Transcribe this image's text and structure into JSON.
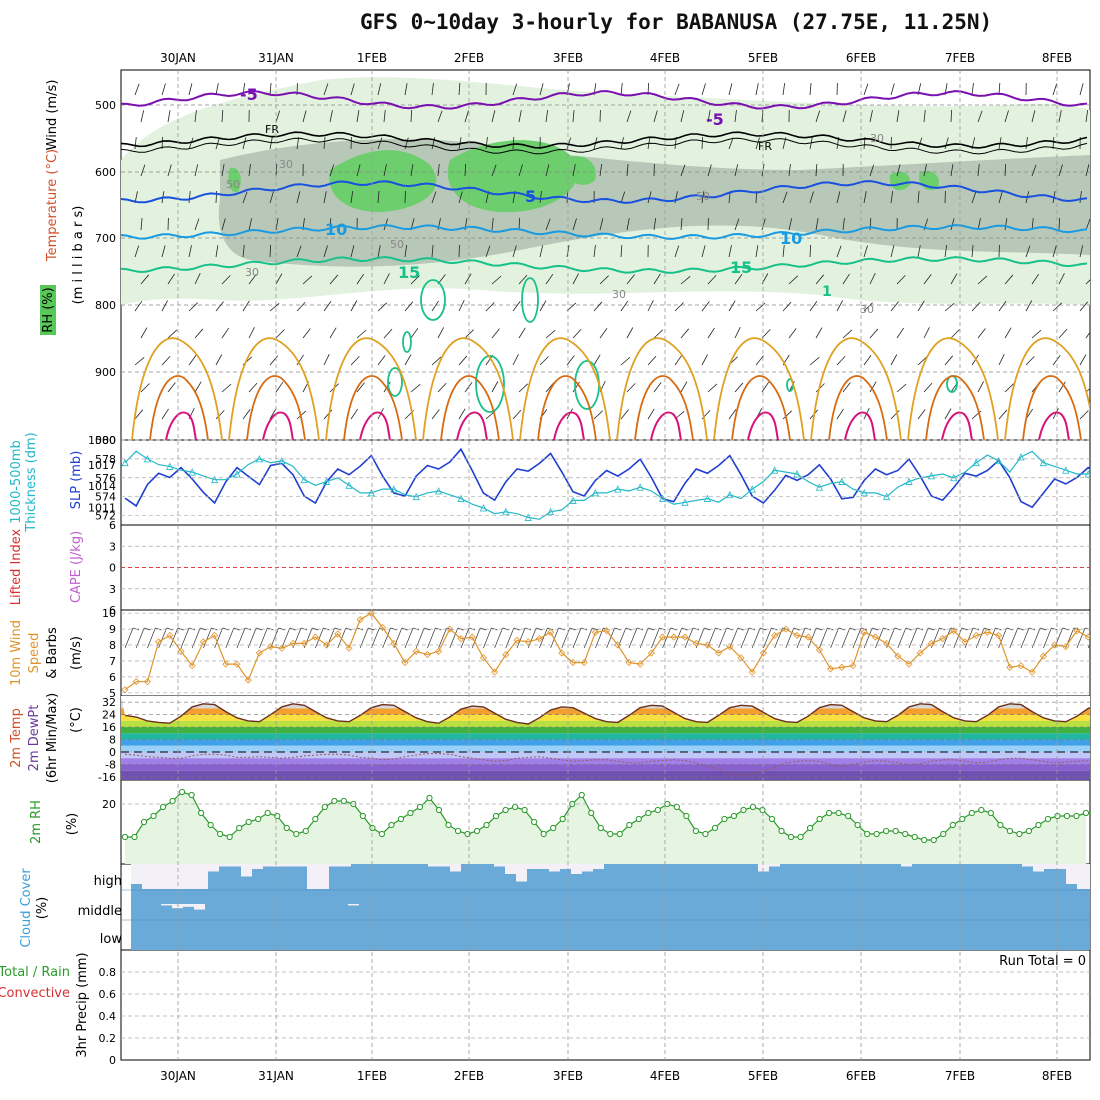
{
  "title": "GFS 0~10day 3-hourly for BABANUSA (27.75E, 11.25N)",
  "dates": [
    "30JAN",
    "31JAN",
    "1FEB",
    "2FEB",
    "3FEB",
    "4FEB",
    "5FEB",
    "6FEB",
    "7FEB",
    "8FEB"
  ],
  "colors": {
    "grid": "#9a9a9a",
    "slp": "#1f3fd0",
    "thickness": "#22b8c8",
    "wind": "#e0942a",
    "rh2m": "#2a9a2a",
    "rh2m_fill": "#e6f4e2",
    "cloud": "#6aaad8",
    "rh_light": "#e2f2df",
    "rh_mid": "#b8c8b8",
    "rh_high": "#6cce6c",
    "t_neg5": "#7a10b0",
    "t_fr": "#000000",
    "t_5": "#1850e0",
    "t_10": "#1a9ae0",
    "t_15": "#18c08a",
    "t_warm1": "#e0a020",
    "t_warm2": "#d86a10",
    "t_warm3": "#d8107a"
  },
  "panels": {
    "upper": {
      "ylabel": "(m i l l i b a r s)",
      "legend_wind": "Wind (m/s)",
      "legend_temp": "Temperature (°C)",
      "legend_rh": "RH (%)",
      "ticks": [
        "500",
        "600",
        "700",
        "800",
        "900",
        "1000"
      ],
      "contour_labels": [
        "-5",
        "-5",
        "FR",
        "FR",
        "5",
        "10",
        "10",
        "15",
        "15",
        "1",
        "30",
        "30",
        "30",
        "50",
        "50",
        "50",
        "30",
        "30"
      ]
    },
    "slp": {
      "label_thick1": "1000-500mb",
      "label_thick2": "Thickness (dm)",
      "label_slp": "SLP (mb)",
      "left_ticks": [
        "580",
        "578",
        "576",
        "574",
        "572"
      ],
      "right_ticks": [
        "1017",
        "1014",
        "1011"
      ]
    },
    "cape": {
      "label_li": "Lifted Index",
      "label_cape": "CAPE (J/kg)",
      "ticks": [
        "6",
        "3",
        "0",
        "3",
        "6"
      ]
    },
    "wind": {
      "label1": "10m Wind",
      "label2": "Speed",
      "label3": "& Barbs",
      "unit": "(m/s)",
      "ticks": [
        "10",
        "9",
        "8",
        "7",
        "6",
        "5"
      ]
    },
    "temp": {
      "label1": "2m Temp",
      "label2": "2m DewPt",
      "label3": "(6hr Min/Max)",
      "unit": "(°C)",
      "ticks": [
        "32",
        "24",
        "16",
        "8",
        "0",
        "-8",
        "-16"
      ]
    },
    "rh": {
      "label": "2m RH",
      "unit": "(%)",
      "ticks": [
        "20"
      ]
    },
    "cloud": {
      "label1": "Cloud Cover",
      "unit": "(%)",
      "levels": [
        "high",
        "middle",
        "low"
      ]
    },
    "precip": {
      "label1": "Total / Rain",
      "label2": "Convective",
      "ylabel": "3hr Precip (mm)",
      "run_total": "Run Total = 0",
      "ticks": [
        "0.8",
        "0.6",
        "0.4",
        "0.2",
        "0"
      ]
    }
  },
  "chart_data": [
    {
      "type": "line",
      "title": "1000-500mb Thickness (dm) / SLP (mb)",
      "x_unit": "3-hourly steps from 29JAN 12Z",
      "series": [
        {
          "name": "SLP (mb)",
          "values": [
            1012.3,
            1011.2,
            1014.2,
            1015.8,
            1015.2,
            1016.6,
            1015.0,
            1013.1,
            1011.6,
            1014.6,
            1016.6,
            1015.4,
            1014.2,
            1016.9,
            1017.2,
            1015.6,
            1012.6,
            1011.6,
            1014.6,
            1016.4,
            1015.6,
            1016.8,
            1018.3,
            1015.4,
            1013.0,
            1012.6,
            1015.4,
            1016.9,
            1016.4,
            1017.4,
            1019.2,
            1016.2,
            1013.0,
            1012.0,
            1014.6,
            1016.4,
            1016.1,
            1017.2,
            1018.6,
            1016.0,
            1013.2,
            1012.6,
            1014.8,
            1016.2,
            1015.4,
            1016.4,
            1017.8,
            1015.2,
            1012.2,
            1011.8,
            1014.4,
            1016.4,
            1015.8,
            1016.9,
            1018.3,
            1015.6,
            1012.6,
            1011.6,
            1013.4,
            1015.5,
            1014.8,
            1015.6,
            1017.0,
            1015.0,
            1012.2,
            1012.4,
            1014.8,
            1016.4,
            1015.6,
            1016.2,
            1017.8,
            1015.4,
            1012.6,
            1012.0,
            1013.8,
            1015.8,
            1015.4,
            1016.2,
            1017.6,
            1015.2,
            1011.8,
            1011.0,
            1013.0,
            1015.0,
            1014.3,
            1015.2,
            1016.6,
            1016.0
          ]
        },
        {
          "name": "1000-500mb Thickness (dm)",
          "values": [
            577.6,
            578.8,
            578.0,
            577.4,
            577.2,
            576.8,
            576.6,
            576.2,
            575.8,
            575.8,
            576.4,
            577.4,
            578.0,
            577.6,
            577.8,
            577.2,
            575.8,
            575.2,
            575.6,
            576.0,
            575.2,
            574.4,
            574.4,
            574.8,
            574.8,
            574.2,
            574.0,
            574.4,
            574.6,
            574.2,
            573.8,
            573.2,
            572.8,
            572.2,
            572.4,
            572.2,
            571.8,
            571.6,
            572.4,
            572.6,
            573.6,
            573.6,
            574.4,
            574.4,
            574.8,
            574.6,
            575.0,
            574.6,
            573.8,
            573.2,
            573.4,
            573.6,
            573.8,
            573.4,
            574.2,
            573.8,
            574.8,
            575.6,
            576.8,
            576.6,
            576.4,
            575.6,
            575.0,
            575.4,
            575.6,
            574.8,
            574.4,
            574.4,
            574.0,
            575.0,
            575.6,
            576.0,
            576.2,
            576.4,
            576.0,
            576.6,
            577.6,
            578.4,
            577.8,
            576.6,
            578.2,
            578.8,
            577.6,
            577.2,
            576.8,
            576.4,
            576.4,
            576.8
          ]
        }
      ],
      "ylim_left": [
        571,
        580
      ],
      "ylim_right": [
        1008.5,
        1020.5
      ]
    },
    {
      "type": "line",
      "title": "Lifted Index / CAPE (J/kg)",
      "series": [
        {
          "name": "Lifted Index zero line",
          "values": [
            0
          ]
        }
      ],
      "ylim": [
        -6,
        6
      ]
    },
    {
      "type": "line",
      "title": "10m Wind Speed & Barbs (m/s)",
      "series": [
        {
          "name": "Wind speed (m/s)",
          "values": [
            5.2,
            5.7,
            5.7,
            8.2,
            8.6,
            7.6,
            6.7,
            8.2,
            8.6,
            6.8,
            6.8,
            5.8,
            7.5,
            7.9,
            7.8,
            8.1,
            8.1,
            8.5,
            8.0,
            8.7,
            7.8,
            9.6,
            10.0,
            9.1,
            8.1,
            6.9,
            7.6,
            7.4,
            7.6,
            9.0,
            8.4,
            8.5,
            7.2,
            6.3,
            7.4,
            8.3,
            8.2,
            8.4,
            8.8,
            7.5,
            6.9,
            6.9,
            8.8,
            8.9,
            8.0,
            6.9,
            6.8,
            7.5,
            8.5,
            8.5,
            8.5,
            8.1,
            8.0,
            7.5,
            7.9,
            7.2,
            6.3,
            7.5,
            8.6,
            9.0,
            8.6,
            8.5,
            7.7,
            6.5,
            6.6,
            6.7,
            8.8,
            8.5,
            8.1,
            7.3,
            6.8,
            7.5,
            8.1,
            8.4,
            8.9,
            8.2,
            8.6,
            8.8,
            8.6,
            6.6,
            6.7,
            6.3,
            7.3,
            8.0,
            7.9,
            8.9,
            8.5,
            8.5
          ]
        }
      ],
      "ylim": [
        4.8,
        10.2
      ]
    },
    {
      "type": "area",
      "title": "2m Temp / 2m DewPt (°C)",
      "series": [
        {
          "name": "2m Temp (°C)",
          "values": [
            23.5,
            22.5,
            20.0,
            19.0,
            18.5,
            23.0,
            29.0,
            31.0,
            30.5,
            26.0,
            22.0,
            20.0,
            19.5,
            24.0,
            29.0,
            31.0,
            30.0,
            26.0,
            22.0,
            20.0,
            19.5,
            23.5,
            28.5,
            30.5,
            30.0,
            26.0,
            22.0,
            19.5,
            18.5,
            22.5,
            27.5,
            29.5,
            29.0,
            25.0,
            21.0,
            19.0,
            18.0,
            22.0,
            27.0,
            29.0,
            28.5,
            25.0,
            21.5,
            19.5,
            19.0,
            23.5,
            28.5,
            30.0,
            29.5,
            25.5,
            21.5,
            19.5,
            19.0,
            23.5,
            28.5,
            30.0,
            29.5,
            25.5,
            21.5,
            19.5,
            19.0,
            23.0,
            28.5,
            30.5,
            30.0,
            26.0,
            22.0,
            20.0,
            19.5,
            23.5,
            29.0,
            31.0,
            30.5,
            26.0,
            22.0,
            20.0,
            19.5,
            23.5,
            29.0,
            31.0,
            30.5,
            26.0,
            22.0,
            20.0,
            19.5,
            23.0,
            28.0,
            30.0
          ]
        },
        {
          "name": "2m DewPt (°C)",
          "values": [
            -1.5,
            -2,
            -3,
            -3.5,
            -4,
            -4,
            -2.5,
            -1.5,
            -1.5,
            -2,
            -3.5,
            -3.5,
            -3,
            -3.5,
            -4,
            -3.5,
            -2.5,
            -2,
            -1.5,
            -1.5,
            -2,
            -3.5,
            -4,
            -5,
            -4.5,
            -3,
            -2,
            -1,
            -1,
            -1.5,
            -3,
            -4,
            -5,
            -6,
            -5.5,
            -4,
            -3.5,
            -3,
            -4,
            -5,
            -6,
            -5.5,
            -5,
            -5,
            -6,
            -7,
            -7,
            -6,
            -5.5,
            -5,
            -5.5,
            -7,
            -9,
            -11,
            -14,
            -15,
            -14,
            -12,
            -10,
            -7,
            -6,
            -5.5,
            -6,
            -8,
            -9.5,
            -8,
            -6.5,
            -5.5,
            -6,
            -7,
            -8,
            -7.5,
            -6,
            -5,
            -5,
            -6,
            -7,
            -6.5,
            -5,
            -4,
            -4,
            -5,
            -6,
            -7,
            -6.5,
            -6,
            -5.5,
            -6
          ]
        }
      ],
      "ylim": [
        -18,
        36
      ]
    },
    {
      "type": "line",
      "title": "2m RH (%)",
      "series": [
        {
          "name": "2m RH (%)",
          "values": [
            9,
            9,
            14,
            16,
            19,
            21,
            24,
            23,
            17,
            13,
            10,
            9,
            12,
            14,
            15,
            17,
            16,
            12,
            10,
            11,
            15,
            19,
            21,
            21,
            20,
            16,
            12,
            10,
            13,
            15,
            17,
            19,
            22,
            18,
            13,
            11,
            10,
            11,
            13,
            16,
            18,
            19,
            18,
            14,
            10,
            12,
            15,
            20,
            23,
            17,
            12,
            10,
            10,
            13,
            15,
            17,
            18,
            20,
            19,
            16,
            11,
            10,
            12,
            15,
            16,
            18,
            19,
            18,
            15,
            11,
            9,
            9,
            12,
            15,
            17,
            17,
            16,
            13,
            10,
            10,
            11,
            11,
            10,
            9,
            8,
            8,
            10,
            13,
            15,
            17,
            18,
            17,
            13,
            11,
            10,
            11,
            13,
            15,
            16,
            16,
            16,
            17
          ]
        }
      ],
      "ylim": [
        0,
        28
      ]
    },
    {
      "type": "bar",
      "title": "Cloud Cover (%)",
      "series": [
        {
          "name": "high",
          "values": [
            80,
            100,
            100,
            100,
            100,
            100,
            100,
            30,
            10,
            10,
            50,
            20,
            10,
            10,
            10,
            10,
            100,
            100,
            10,
            10,
            0,
            0,
            0,
            0,
            0,
            0,
            0,
            10,
            10,
            30,
            0,
            0,
            0,
            10,
            40,
            70,
            20,
            20,
            30,
            20,
            40,
            30,
            20,
            0,
            0,
            0,
            0,
            0,
            0,
            0,
            0,
            0,
            0,
            0,
            0,
            0,
            0,
            30,
            10,
            0,
            0,
            0,
            0,
            0,
            0,
            0,
            0,
            0,
            0,
            0,
            10,
            0,
            0,
            0,
            0,
            0,
            0,
            0,
            0,
            0,
            0,
            10,
            30,
            20,
            20,
            80,
            100,
            100
          ]
        },
        {
          "name": "middle",
          "values": [
            0,
            0,
            10,
            30,
            20,
            40,
            0,
            0,
            0,
            0,
            0,
            0,
            0,
            0,
            0,
            0,
            0,
            0,
            0,
            10,
            0,
            0,
            0,
            0,
            0,
            0,
            0,
            0,
            0,
            0,
            0,
            0,
            0,
            0,
            0,
            0,
            0,
            0,
            0,
            0,
            0,
            0,
            0,
            0,
            0,
            0,
            0,
            0,
            0,
            0,
            0,
            0,
            0,
            0,
            0,
            0,
            0,
            0,
            0,
            0,
            0,
            0,
            0,
            0,
            0,
            0,
            0,
            0,
            0,
            0,
            0,
            0,
            0,
            0,
            0,
            0,
            0,
            0,
            0,
            0,
            0,
            0,
            0,
            0,
            0,
            0,
            0,
            0
          ]
        },
        {
          "name": "low",
          "values": [
            0
          ]
        }
      ],
      "ylim": [
        0,
        100
      ]
    },
    {
      "type": "bar",
      "title": "3hr Precip (mm)",
      "series": [
        {
          "name": "Total / Rain",
          "values": [
            0
          ]
        },
        {
          "name": "Convective",
          "values": [
            0
          ]
        }
      ],
      "ylim": [
        0,
        1
      ]
    }
  ]
}
